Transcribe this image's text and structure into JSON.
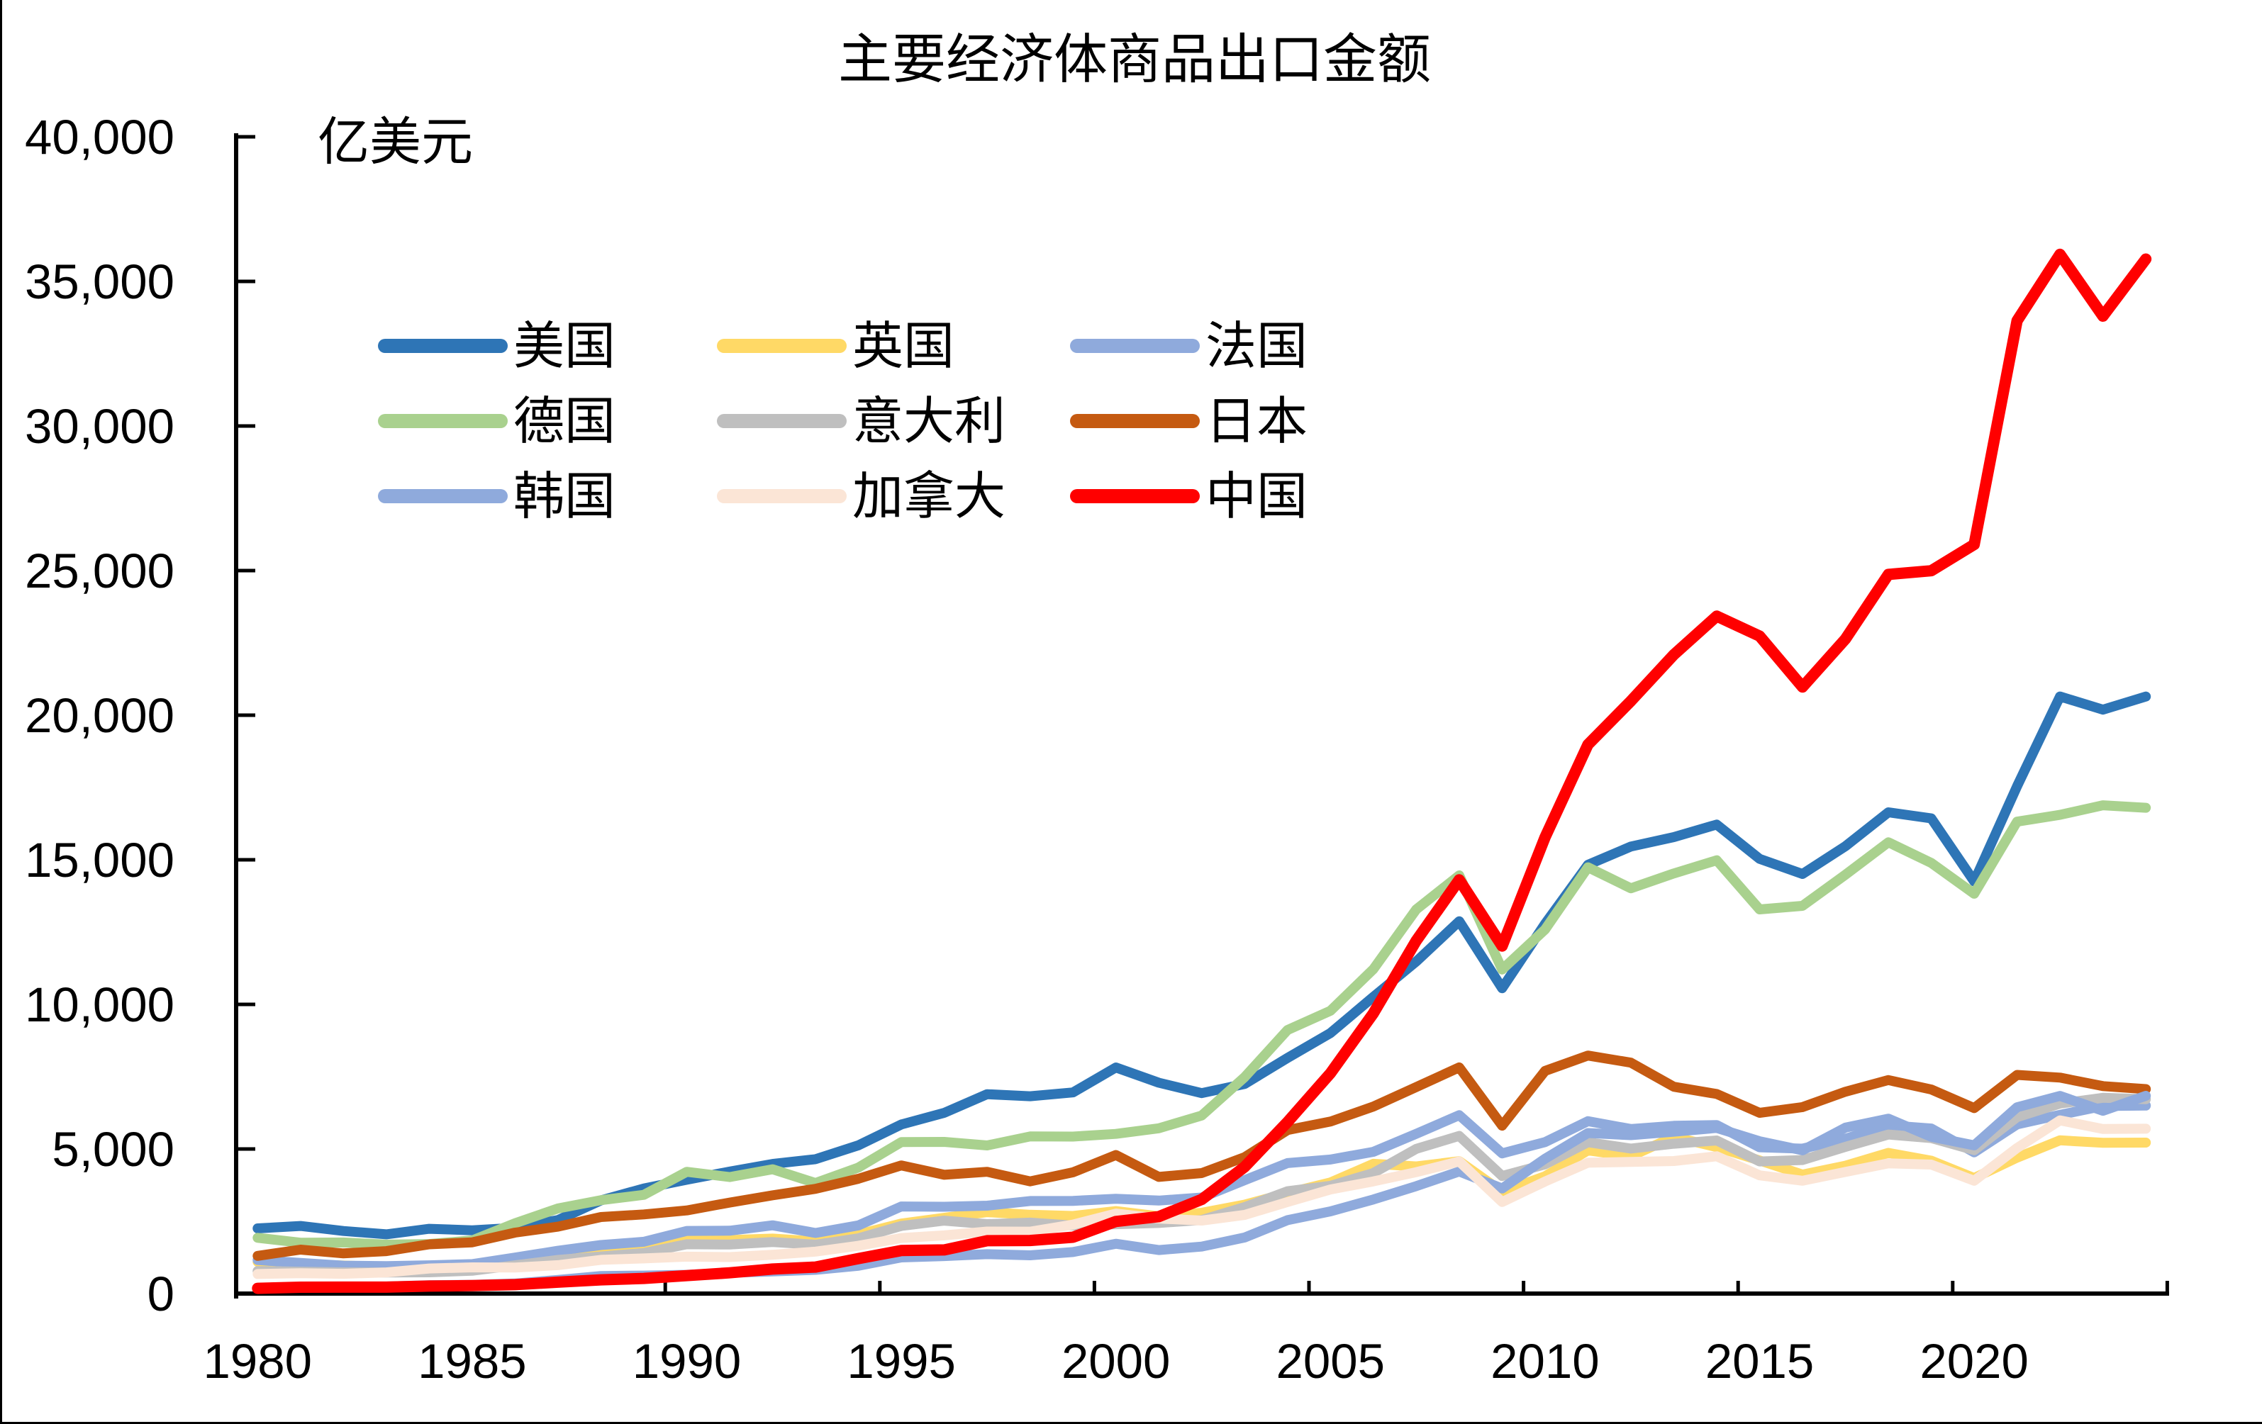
{
  "page": {
    "background_color": "#FFFFFF",
    "border_color": "#000000"
  },
  "chart_data": {
    "type": "line",
    "title": "主要经济体商品出口金额",
    "title_color": "#595959",
    "unit_label": "亿美元",
    "xlabel": "",
    "ylabel": "亿美元",
    "ylim": [
      0,
      40000
    ],
    "y_major_step": 5000,
    "grid": "off",
    "legend_position": "inside-top-left",
    "legend_columns": 3,
    "y_tick_labels": [
      "0",
      "5,000",
      "10,000",
      "15,000",
      "20,000",
      "25,000",
      "30,000",
      "35,000",
      "40,000"
    ],
    "x_tick_labels": [
      "1980",
      "1985",
      "1990",
      "1995",
      "2000",
      "2005",
      "2010",
      "2015",
      "2020"
    ],
    "x": [
      1980,
      1981,
      1982,
      1983,
      1984,
      1985,
      1986,
      1987,
      1988,
      1989,
      1990,
      1991,
      1992,
      1993,
      1994,
      1995,
      1996,
      1997,
      1998,
      1999,
      2000,
      2001,
      2002,
      2003,
      2004,
      2005,
      2006,
      2007,
      2008,
      2009,
      2010,
      2011,
      2012,
      2013,
      2014,
      2015,
      2016,
      2017,
      2018,
      2019,
      2020,
      2021,
      2022,
      2023,
      2024
    ],
    "legend_order": [
      "usa",
      "uk",
      "france",
      "germany",
      "italy",
      "japan",
      "korea",
      "canada",
      "china"
    ],
    "series": [
      {
        "id": "usa",
        "name": "美国",
        "color": "#2E75B6",
        "stroke_width": 14,
        "values": [
          2256,
          2339,
          2163,
          2050,
          2240,
          2188,
          2271,
          2544,
          3222,
          3636,
          3936,
          4217,
          4482,
          4648,
          5127,
          5847,
          6251,
          6894,
          6823,
          6957,
          7819,
          7291,
          6931,
          7248,
          8149,
          9011,
          10259,
          11482,
          12874,
          10560,
          12785,
          14825,
          15458,
          15785,
          16219,
          15033,
          14510,
          15467,
          16641,
          16432,
          14249,
          17543,
          20648,
          20190,
          20645
        ]
      },
      {
        "id": "uk",
        "name": "英国",
        "color": "#FFD966",
        "stroke_width": 14,
        "values": [
          1101,
          1025,
          970,
          919,
          939,
          1013,
          1070,
          1312,
          1452,
          1525,
          1852,
          1851,
          1902,
          1805,
          2050,
          2421,
          2619,
          2815,
          2726,
          2684,
          2854,
          2672,
          2795,
          3077,
          3477,
          3844,
          4487,
          4396,
          4579,
          3523,
          4057,
          4950,
          4748,
          5420,
          5065,
          4604,
          4115,
          4421,
          4864,
          4596,
          3995,
          4702,
          5300,
          5213,
          5220
        ]
      },
      {
        "id": "france",
        "name": "法国",
        "color": "#8FAADC",
        "stroke_width": 14,
        "values": [
          1160,
          1062,
          965,
          951,
          978,
          1019,
          1244,
          1480,
          1679,
          1791,
          2166,
          2174,
          2360,
          2096,
          2359,
          3012,
          3003,
          3040,
          3200,
          3206,
          3276,
          3216,
          3320,
          3922,
          4513,
          4634,
          4903,
          5525,
          6168,
          4848,
          5237,
          5961,
          5691,
          5802,
          5828,
          5059,
          5013,
          5352,
          5818,
          5709,
          4886,
          5850,
          6182,
          6485,
          6500
        ]
      },
      {
        "id": "germany",
        "name": "德国",
        "color": "#A9D18E",
        "stroke_width": 14,
        "values": [
          1929,
          1760,
          1766,
          1693,
          1714,
          1838,
          2434,
          2943,
          3231,
          3413,
          4211,
          4029,
          4300,
          3823,
          4357,
          5238,
          5246,
          5122,
          5434,
          5428,
          5521,
          5716,
          6157,
          7485,
          9115,
          9779,
          11217,
          13285,
          14462,
          11205,
          12589,
          14739,
          14015,
          14528,
          14982,
          13285,
          13408,
          14482,
          15605,
          14892,
          13825,
          16319,
          16553,
          16884,
          16800
        ]
      },
      {
        "id": "italy",
        "name": "意大利",
        "color": "#BFBFBF",
        "stroke_width": 14,
        "values": [
          781,
          757,
          735,
          728,
          735,
          789,
          977,
          1165,
          1285,
          1405,
          1705,
          1695,
          1782,
          1690,
          1912,
          2338,
          2522,
          2401,
          2454,
          2352,
          2399,
          2442,
          2543,
          2993,
          3539,
          3729,
          4170,
          5004,
          5450,
          4065,
          4468,
          5233,
          5015,
          5181,
          5295,
          4569,
          4617,
          5074,
          5499,
          5377,
          4958,
          6100,
          6570,
          6770,
          6720
        ]
      },
      {
        "id": "japan",
        "name": "日本",
        "color": "#C55A11",
        "stroke_width": 14,
        "values": [
          1304,
          1520,
          1390,
          1469,
          1703,
          1772,
          2109,
          2314,
          2646,
          2738,
          2876,
          3147,
          3398,
          3622,
          3971,
          4431,
          4109,
          4210,
          3879,
          4194,
          4792,
          4035,
          4166,
          4718,
          5655,
          5949,
          6468,
          7143,
          7821,
          5807,
          7698,
          8230,
          7986,
          7151,
          6902,
          6249,
          6449,
          6981,
          7382,
          7056,
          6413,
          7561,
          7469,
          7173,
          7070
        ]
      },
      {
        "id": "korea",
        "name": "韩国",
        "color": "#8FAADC",
        "stroke_width": 14,
        "values": [
          175,
          213,
          219,
          245,
          292,
          303,
          348,
          473,
          607,
          623,
          650,
          719,
          766,
          822,
          960,
          1251,
          1297,
          1362,
          1323,
          1437,
          1723,
          1504,
          1625,
          1938,
          2538,
          2844,
          3255,
          3715,
          4220,
          3635,
          4664,
          5552,
          5479,
          5596,
          5727,
          5268,
          4954,
          5737,
          6049,
          5422,
          5125,
          6444,
          6836,
          6322,
          6838
        ]
      },
      {
        "id": "canada",
        "name": "加拿大",
        "color": "#FBE5D6",
        "stroke_width": 14,
        "values": [
          677,
          705,
          685,
          733,
          867,
          906,
          901,
          982,
          1167,
          1216,
          1276,
          1262,
          1344,
          1452,
          1654,
          1922,
          2012,
          2144,
          2143,
          2384,
          2766,
          2596,
          2525,
          2720,
          3167,
          3601,
          3881,
          4199,
          4568,
          3167,
          3875,
          4524,
          4551,
          4584,
          4748,
          4088,
          3901,
          4206,
          4503,
          4461,
          3902,
          5034,
          5991,
          5690,
          5700
        ]
      },
      {
        "id": "china",
        "name": "中国",
        "color": "#FF0000",
        "stroke_width": 16,
        "values": [
          181,
          220,
          223,
          222,
          261,
          274,
          309,
          394,
          475,
          525,
          621,
          719,
          849,
          917,
          1210,
          1488,
          1511,
          1828,
          1837,
          1949,
          2492,
          2661,
          3256,
          4382,
          5933,
          7620,
          9690,
          12204,
          14307,
          12016,
          15778,
          18984,
          20487,
          22090,
          23423,
          22735,
          20976,
          22633,
          24867,
          24995,
          25901,
          33640,
          35936,
          33800,
          35772
        ]
      }
    ]
  }
}
